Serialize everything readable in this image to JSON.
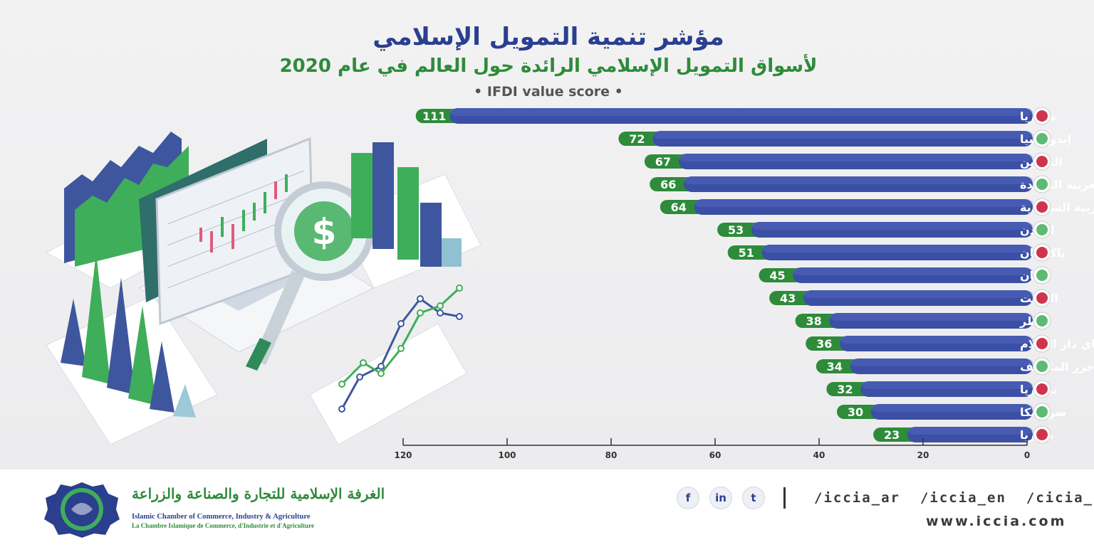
{
  "header": {
    "title": "مؤشر تنمية التمويل الإسلامي",
    "subtitle": "لأسواق التمويل الإسلامي الرائدة حول العالم في عام 2020",
    "score_label": "• IFDI value score •"
  },
  "chart_data": {
    "type": "bar",
    "orientation": "horizontal",
    "categories": [
      "ماليزيا",
      "إندونيسيا",
      "البحرين",
      "الإمارات العربية المتحدة",
      "المملكة العربية السعودية",
      "الأردن",
      "باكستان",
      "عمان",
      "الكويت",
      "قطر",
      "بروناي دار السلام",
      "جزر المالديف",
      "نيجيريا",
      "سريلانكا",
      "سوريا"
    ],
    "values": [
      111,
      72,
      67,
      66,
      64,
      53,
      51,
      45,
      43,
      38,
      36,
      34,
      32,
      30,
      23
    ],
    "flags": [
      "malaysia-flag-icon",
      "indonesia-flag-icon",
      "bahrain-flag-icon",
      "uae-flag-icon",
      "saudi-flag-icon",
      "jordan-flag-icon",
      "pakistan-flag-icon",
      "oman-flag-icon",
      "kuwait-flag-icon",
      "qatar-flag-icon",
      "brunei-flag-icon",
      "maldives-flag-icon",
      "nigeria-flag-icon",
      "srilanka-flag-icon",
      "syria-flag-icon"
    ],
    "x_ticks": [
      0,
      20,
      40,
      60,
      80,
      100,
      120
    ],
    "xlim": [
      0,
      120
    ],
    "axis_direction": "right-to-left",
    "colors": {
      "bar": "#3b4fa5",
      "bar_light": "#5c74c8",
      "value_badge": "#2e8b3a",
      "badge_text": "#ffffff",
      "label": "#ffffff",
      "axis": "#333333"
    }
  },
  "footer": {
    "org_ar": "الغرفة الإسلامية للتجارة والصناعة والزراعة",
    "org_en": "Islamic Chamber of Commerce, Industry & Agriculture",
    "org_fr": "La Chambre Islamique de Commerce, d'Industrie et d'Agriculture",
    "social_icons": {
      "facebook": "f",
      "linkedin": "in",
      "twitter": "t"
    },
    "handles": [
      "/iccia_ar",
      "/iccia_en",
      "/cicia_fr"
    ],
    "website": "www.iccia.com"
  }
}
